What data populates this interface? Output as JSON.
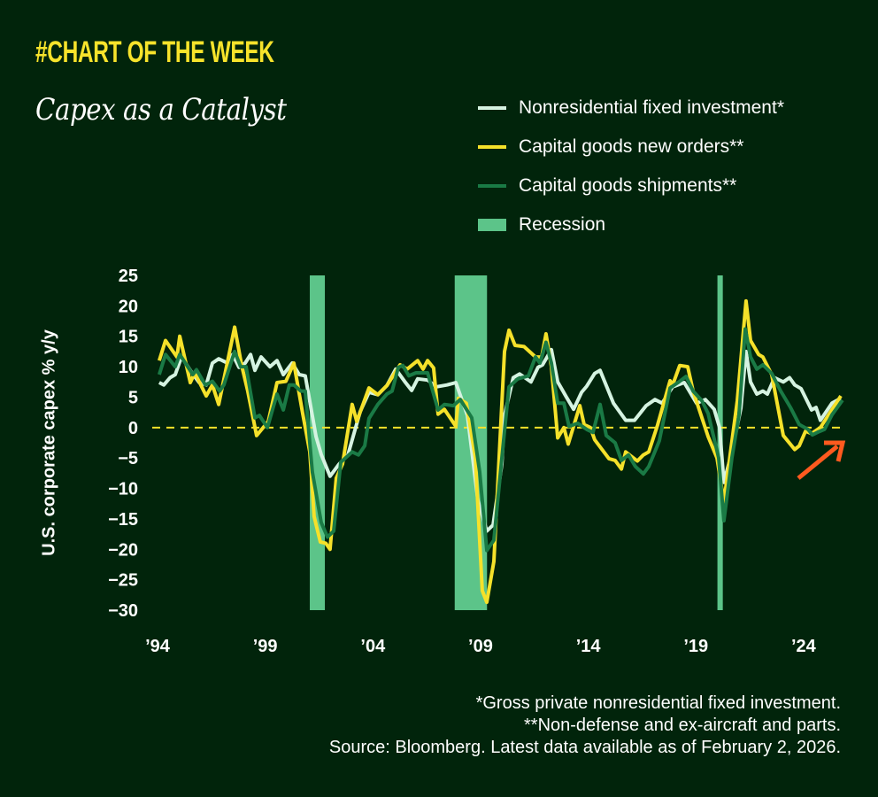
{
  "kicker": "#CHART OF THE WEEK",
  "title": "Capex as a Catalyst",
  "legend": [
    {
      "label": "Nonresidential fixed investment*",
      "color": "#d5f3e1"
    },
    {
      "label": "Capital goods new orders**",
      "color": "#f5e12a"
    },
    {
      "label": "Capital goods shipments**",
      "color": "#1a7a45"
    },
    {
      "label": "Recession",
      "color": "#5cc489"
    }
  ],
  "footer": [
    "*Gross private nonresidential fixed investment.",
    "**Non-defense and ex-aircraft and parts.",
    "Source: Bloomberg. Latest data available as of February 2, 2026."
  ],
  "colors": {
    "background": "#01240b",
    "zero_line": "#f5e12a",
    "arrow": "#ff5a1f"
  },
  "chart_data": {
    "type": "line",
    "title": "Capex as a Catalyst",
    "xlabel": "",
    "ylabel": "U.S. corporate capex % y/y",
    "ylim": [
      -30,
      25
    ],
    "xlim": [
      1994,
      2026
    ],
    "yticks": [
      25,
      20,
      15,
      10,
      5,
      0,
      -5,
      -10,
      -15,
      -20,
      -25,
      -30
    ],
    "ytick_labels": [
      "25",
      "20",
      "15",
      "10",
      "5",
      "0",
      "−5",
      "−10",
      "−15",
      "−20",
      "−25",
      "−30"
    ],
    "xticks": [
      1994,
      1999,
      2004,
      2009,
      2014,
      2019,
      2024
    ],
    "xtick_labels": [
      "’94",
      "’99",
      "’04",
      "’09",
      "’14",
      "’19",
      "’24"
    ],
    "legend_position": "top-right",
    "grid": false,
    "reference_line": 0,
    "annotation": "orange up-right arrow near latest data",
    "recessions": [
      [
        2001.07,
        2001.77
      ],
      [
        2007.8,
        2009.3
      ],
      [
        2020.0,
        2020.25
      ]
    ],
    "series": [
      {
        "name": "Nonresidential fixed investment*",
        "color": "#d5f3e1",
        "points": [
          [
            1994.08,
            7.4
          ],
          [
            1994.29,
            7
          ],
          [
            1994.58,
            8.2
          ],
          [
            1994.82,
            8.7
          ],
          [
            1995.11,
            11.6
          ],
          [
            1995.6,
            9
          ],
          [
            1995.93,
            7.4
          ],
          [
            1996.26,
            7
          ],
          [
            1996.55,
            10.6
          ],
          [
            1996.84,
            11.3
          ],
          [
            1997.25,
            10.6
          ],
          [
            1997.49,
            12
          ],
          [
            1997.78,
            9.9
          ],
          [
            1998.07,
            10.6
          ],
          [
            1998.32,
            12
          ],
          [
            1998.52,
            9.4
          ],
          [
            1998.81,
            11.6
          ],
          [
            1999.22,
            10
          ],
          [
            1999.55,
            11
          ],
          [
            1999.84,
            8.7
          ],
          [
            2000.25,
            10.6
          ],
          [
            2000.58,
            8.7
          ],
          [
            2000.86,
            8.5
          ],
          [
            2001.36,
            -1.5
          ],
          [
            2001.6,
            -4.4
          ],
          [
            2002.01,
            -8
          ],
          [
            2002.43,
            -6
          ],
          [
            2002.84,
            -4.5
          ],
          [
            2003.41,
            2.6
          ],
          [
            2003.82,
            5.8
          ],
          [
            2004.23,
            5.4
          ],
          [
            2004.65,
            6.9
          ],
          [
            2005.06,
            9.6
          ],
          [
            2005.47,
            7.6
          ],
          [
            2005.8,
            6.1
          ],
          [
            2006.08,
            8
          ],
          [
            2006.54,
            7.8
          ],
          [
            2006.95,
            6.7
          ],
          [
            2007.44,
            7
          ],
          [
            2007.85,
            7.4
          ],
          [
            2008.39,
            2
          ],
          [
            2008.88,
            -12
          ],
          [
            2009.29,
            -17
          ],
          [
            2009.58,
            -16
          ],
          [
            2009.99,
            -6
          ],
          [
            2010.11,
            2
          ],
          [
            2010.52,
            8.2
          ],
          [
            2010.81,
            8.8
          ],
          [
            2011.06,
            8.2
          ],
          [
            2011.34,
            7.5
          ],
          [
            2011.67,
            9.9
          ],
          [
            2011.88,
            10.3
          ],
          [
            2012.29,
            12.8
          ],
          [
            2012.58,
            7.5
          ],
          [
            2012.99,
            5
          ],
          [
            2013.32,
            3
          ],
          [
            2013.69,
            5.8
          ],
          [
            2013.93,
            6.8
          ],
          [
            2014.3,
            8.9
          ],
          [
            2014.55,
            9.4
          ],
          [
            2015.17,
            4
          ],
          [
            2015.74,
            1.2
          ],
          [
            2016.15,
            1.2
          ],
          [
            2016.69,
            3.6
          ],
          [
            2017.1,
            4.6
          ],
          [
            2017.43,
            4
          ],
          [
            2017.92,
            6.7
          ],
          [
            2018.46,
            7.4
          ],
          [
            2019.03,
            4
          ],
          [
            2019.44,
            4.6
          ],
          [
            2019.85,
            3
          ],
          [
            2020.1,
            0
          ],
          [
            2020.3,
            -9
          ],
          [
            2020.67,
            -4
          ],
          [
            2021.09,
            3.2
          ],
          [
            2021.33,
            12.5
          ],
          [
            2021.54,
            7.5
          ],
          [
            2021.83,
            5.5
          ],
          [
            2022.11,
            6
          ],
          [
            2022.32,
            5.5
          ],
          [
            2022.65,
            8.2
          ],
          [
            2023.06,
            7.5
          ],
          [
            2023.35,
            8.2
          ],
          [
            2023.59,
            7
          ],
          [
            2023.88,
            6.4
          ],
          [
            2024.37,
            2.9
          ],
          [
            2024.58,
            3.3
          ],
          [
            2024.78,
            1.2
          ],
          [
            2025.32,
            4
          ],
          [
            2025.73,
            4.8
          ]
        ]
      },
      {
        "name": "Capital goods new orders**",
        "color": "#f5e12a",
        "points": [
          [
            1994.08,
            11
          ],
          [
            1994.37,
            14.3
          ],
          [
            1994.9,
            11.6
          ],
          [
            1995.03,
            15
          ],
          [
            1995.52,
            7.4
          ],
          [
            1995.73,
            9
          ],
          [
            1996.26,
            5.2
          ],
          [
            1996.55,
            7
          ],
          [
            1996.84,
            3.8
          ],
          [
            1997.58,
            16.5
          ],
          [
            1997.9,
            10.3
          ],
          [
            1998.19,
            6
          ],
          [
            1998.6,
            -1.3
          ],
          [
            1999.14,
            1
          ],
          [
            1999.55,
            7.4
          ],
          [
            1999.96,
            7.6
          ],
          [
            2000.33,
            10.6
          ],
          [
            2000.74,
            2.3
          ],
          [
            2001.07,
            -4
          ],
          [
            2001.27,
            -14.6
          ],
          [
            2001.56,
            -18.8
          ],
          [
            2001.81,
            -19
          ],
          [
            2002.01,
            -20
          ],
          [
            2002.3,
            -8.3
          ],
          [
            2002.59,
            -6
          ],
          [
            2003.04,
            3.8
          ],
          [
            2003.25,
            1
          ],
          [
            2003.82,
            6.5
          ],
          [
            2004.23,
            5.4
          ],
          [
            2004.65,
            6.9
          ],
          [
            2005.26,
            10.3
          ],
          [
            2005.59,
            9.6
          ],
          [
            2006.08,
            11
          ],
          [
            2006.33,
            9.6
          ],
          [
            2006.54,
            11
          ],
          [
            2006.82,
            9.8
          ],
          [
            2007.03,
            2.2
          ],
          [
            2007.32,
            3
          ],
          [
            2007.85,
            0.2
          ],
          [
            2007.97,
            4.8
          ],
          [
            2008.34,
            4
          ],
          [
            2008.76,
            -5
          ],
          [
            2009.08,
            -26.8
          ],
          [
            2009.29,
            -28.7
          ],
          [
            2009.62,
            -22
          ],
          [
            2010.11,
            12.5
          ],
          [
            2010.32,
            16
          ],
          [
            2010.6,
            13.5
          ],
          [
            2011.02,
            13.3
          ],
          [
            2011.55,
            11.6
          ],
          [
            2011.84,
            11.6
          ],
          [
            2012.04,
            15.4
          ],
          [
            2012.29,
            10
          ],
          [
            2012.58,
            -1.7
          ],
          [
            2012.87,
            0
          ],
          [
            2013.07,
            -2.7
          ],
          [
            2013.61,
            3.6
          ],
          [
            2013.81,
            0.5
          ],
          [
            2014.1,
            0
          ],
          [
            2014.3,
            -2
          ],
          [
            2014.96,
            -5.1
          ],
          [
            2015.25,
            -5.4
          ],
          [
            2015.54,
            -6.8
          ],
          [
            2015.74,
            -4
          ],
          [
            2016.28,
            -5.5
          ],
          [
            2016.56,
            -4.5
          ],
          [
            2016.81,
            -4
          ],
          [
            2017.22,
            0.4
          ],
          [
            2017.8,
            7.7
          ],
          [
            2017.92,
            7
          ],
          [
            2018.25,
            10.2
          ],
          [
            2018.62,
            10
          ],
          [
            2018.87,
            6
          ],
          [
            2019.57,
            -1.5
          ],
          [
            2019.98,
            -5
          ],
          [
            2020.3,
            -12.2
          ],
          [
            2020.92,
            4.4
          ],
          [
            2021.33,
            20.8
          ],
          [
            2021.54,
            14.3
          ],
          [
            2021.91,
            12
          ],
          [
            2022.11,
            11.6
          ],
          [
            2022.52,
            8.7
          ],
          [
            2023.06,
            -1.3
          ],
          [
            2023.59,
            -3.6
          ],
          [
            2023.8,
            -3
          ],
          [
            2024.09,
            -0.6
          ],
          [
            2024.37,
            -1
          ],
          [
            2024.78,
            0
          ],
          [
            2025.73,
            5.2
          ]
        ]
      },
      {
        "name": "Capital goods shipments**",
        "color": "#1a7a45",
        "points": [
          [
            1994.08,
            8.7
          ],
          [
            1994.37,
            12
          ],
          [
            1994.82,
            10
          ],
          [
            1995.03,
            12
          ],
          [
            1995.64,
            8.7
          ],
          [
            1995.81,
            9.5
          ],
          [
            1996.22,
            7
          ],
          [
            1996.55,
            7.6
          ],
          [
            1996.88,
            6
          ],
          [
            1997.08,
            7
          ],
          [
            1997.58,
            12.5
          ],
          [
            1997.86,
            10
          ],
          [
            1998.11,
            10
          ],
          [
            1998.52,
            1.6
          ],
          [
            1998.73,
            2
          ],
          [
            1999.1,
            0
          ],
          [
            1999.55,
            5.5
          ],
          [
            1999.84,
            2.9
          ],
          [
            2000.12,
            7
          ],
          [
            2000.33,
            7
          ],
          [
            2000.66,
            6
          ],
          [
            2000.86,
            6
          ],
          [
            2001.19,
            -7.3
          ],
          [
            2001.6,
            -15.6
          ],
          [
            2001.89,
            -18
          ],
          [
            2002.18,
            -17
          ],
          [
            2002.51,
            -5.7
          ],
          [
            2003.04,
            -4
          ],
          [
            2003.33,
            -4.5
          ],
          [
            2003.62,
            -3
          ],
          [
            2003.82,
            1.5
          ],
          [
            2004.23,
            3.8
          ],
          [
            2004.65,
            5.5
          ],
          [
            2004.89,
            6
          ],
          [
            2005.18,
            9.9
          ],
          [
            2005.39,
            10.2
          ],
          [
            2005.67,
            8.5
          ],
          [
            2006.0,
            9
          ],
          [
            2006.54,
            9
          ],
          [
            2007.03,
            2.9
          ],
          [
            2007.32,
            3.8
          ],
          [
            2007.73,
            3.6
          ],
          [
            2008.06,
            4.6
          ],
          [
            2008.59,
            1.6
          ],
          [
            2008.96,
            -7.3
          ],
          [
            2009.29,
            -20.2
          ],
          [
            2009.62,
            -18.5
          ],
          [
            2010.11,
            -0.6
          ],
          [
            2010.32,
            6.7
          ],
          [
            2010.73,
            8
          ],
          [
            2011.22,
            8.5
          ],
          [
            2011.55,
            11.6
          ],
          [
            2011.76,
            10.6
          ],
          [
            2012.04,
            14
          ],
          [
            2012.29,
            10.6
          ],
          [
            2012.58,
            4
          ],
          [
            2012.87,
            4
          ],
          [
            2013.11,
            0.2
          ],
          [
            2013.52,
            0.7
          ],
          [
            2013.93,
            -0.3
          ],
          [
            2014.22,
            -0.8
          ],
          [
            2014.55,
            3.8
          ],
          [
            2014.84,
            -1.3
          ],
          [
            2015.25,
            -2.5
          ],
          [
            2015.54,
            -5.4
          ],
          [
            2015.87,
            -4.5
          ],
          [
            2016.19,
            -6.4
          ],
          [
            2016.56,
            -7.6
          ],
          [
            2016.81,
            -6.4
          ],
          [
            2017.3,
            -2.2
          ],
          [
            2017.8,
            6.5
          ],
          [
            2018.21,
            7.5
          ],
          [
            2018.54,
            8.4
          ],
          [
            2018.87,
            6
          ],
          [
            2019.28,
            4.4
          ],
          [
            2019.57,
            2.3
          ],
          [
            2020.06,
            -5
          ],
          [
            2020.3,
            -15.3
          ],
          [
            2020.67,
            -5
          ],
          [
            2021.0,
            2
          ],
          [
            2021.29,
            16.2
          ],
          [
            2021.54,
            11.6
          ],
          [
            2021.83,
            9.6
          ],
          [
            2022.11,
            10.3
          ],
          [
            2022.52,
            8.9
          ],
          [
            2022.94,
            6
          ],
          [
            2023.39,
            3.3
          ],
          [
            2023.8,
            0.5
          ],
          [
            2024.21,
            -0.3
          ],
          [
            2024.41,
            -1.2
          ],
          [
            2024.7,
            -0.7
          ],
          [
            2024.97,
            -0.3
          ],
          [
            2025.32,
            2.1
          ],
          [
            2025.81,
            4.5
          ]
        ]
      }
    ]
  }
}
